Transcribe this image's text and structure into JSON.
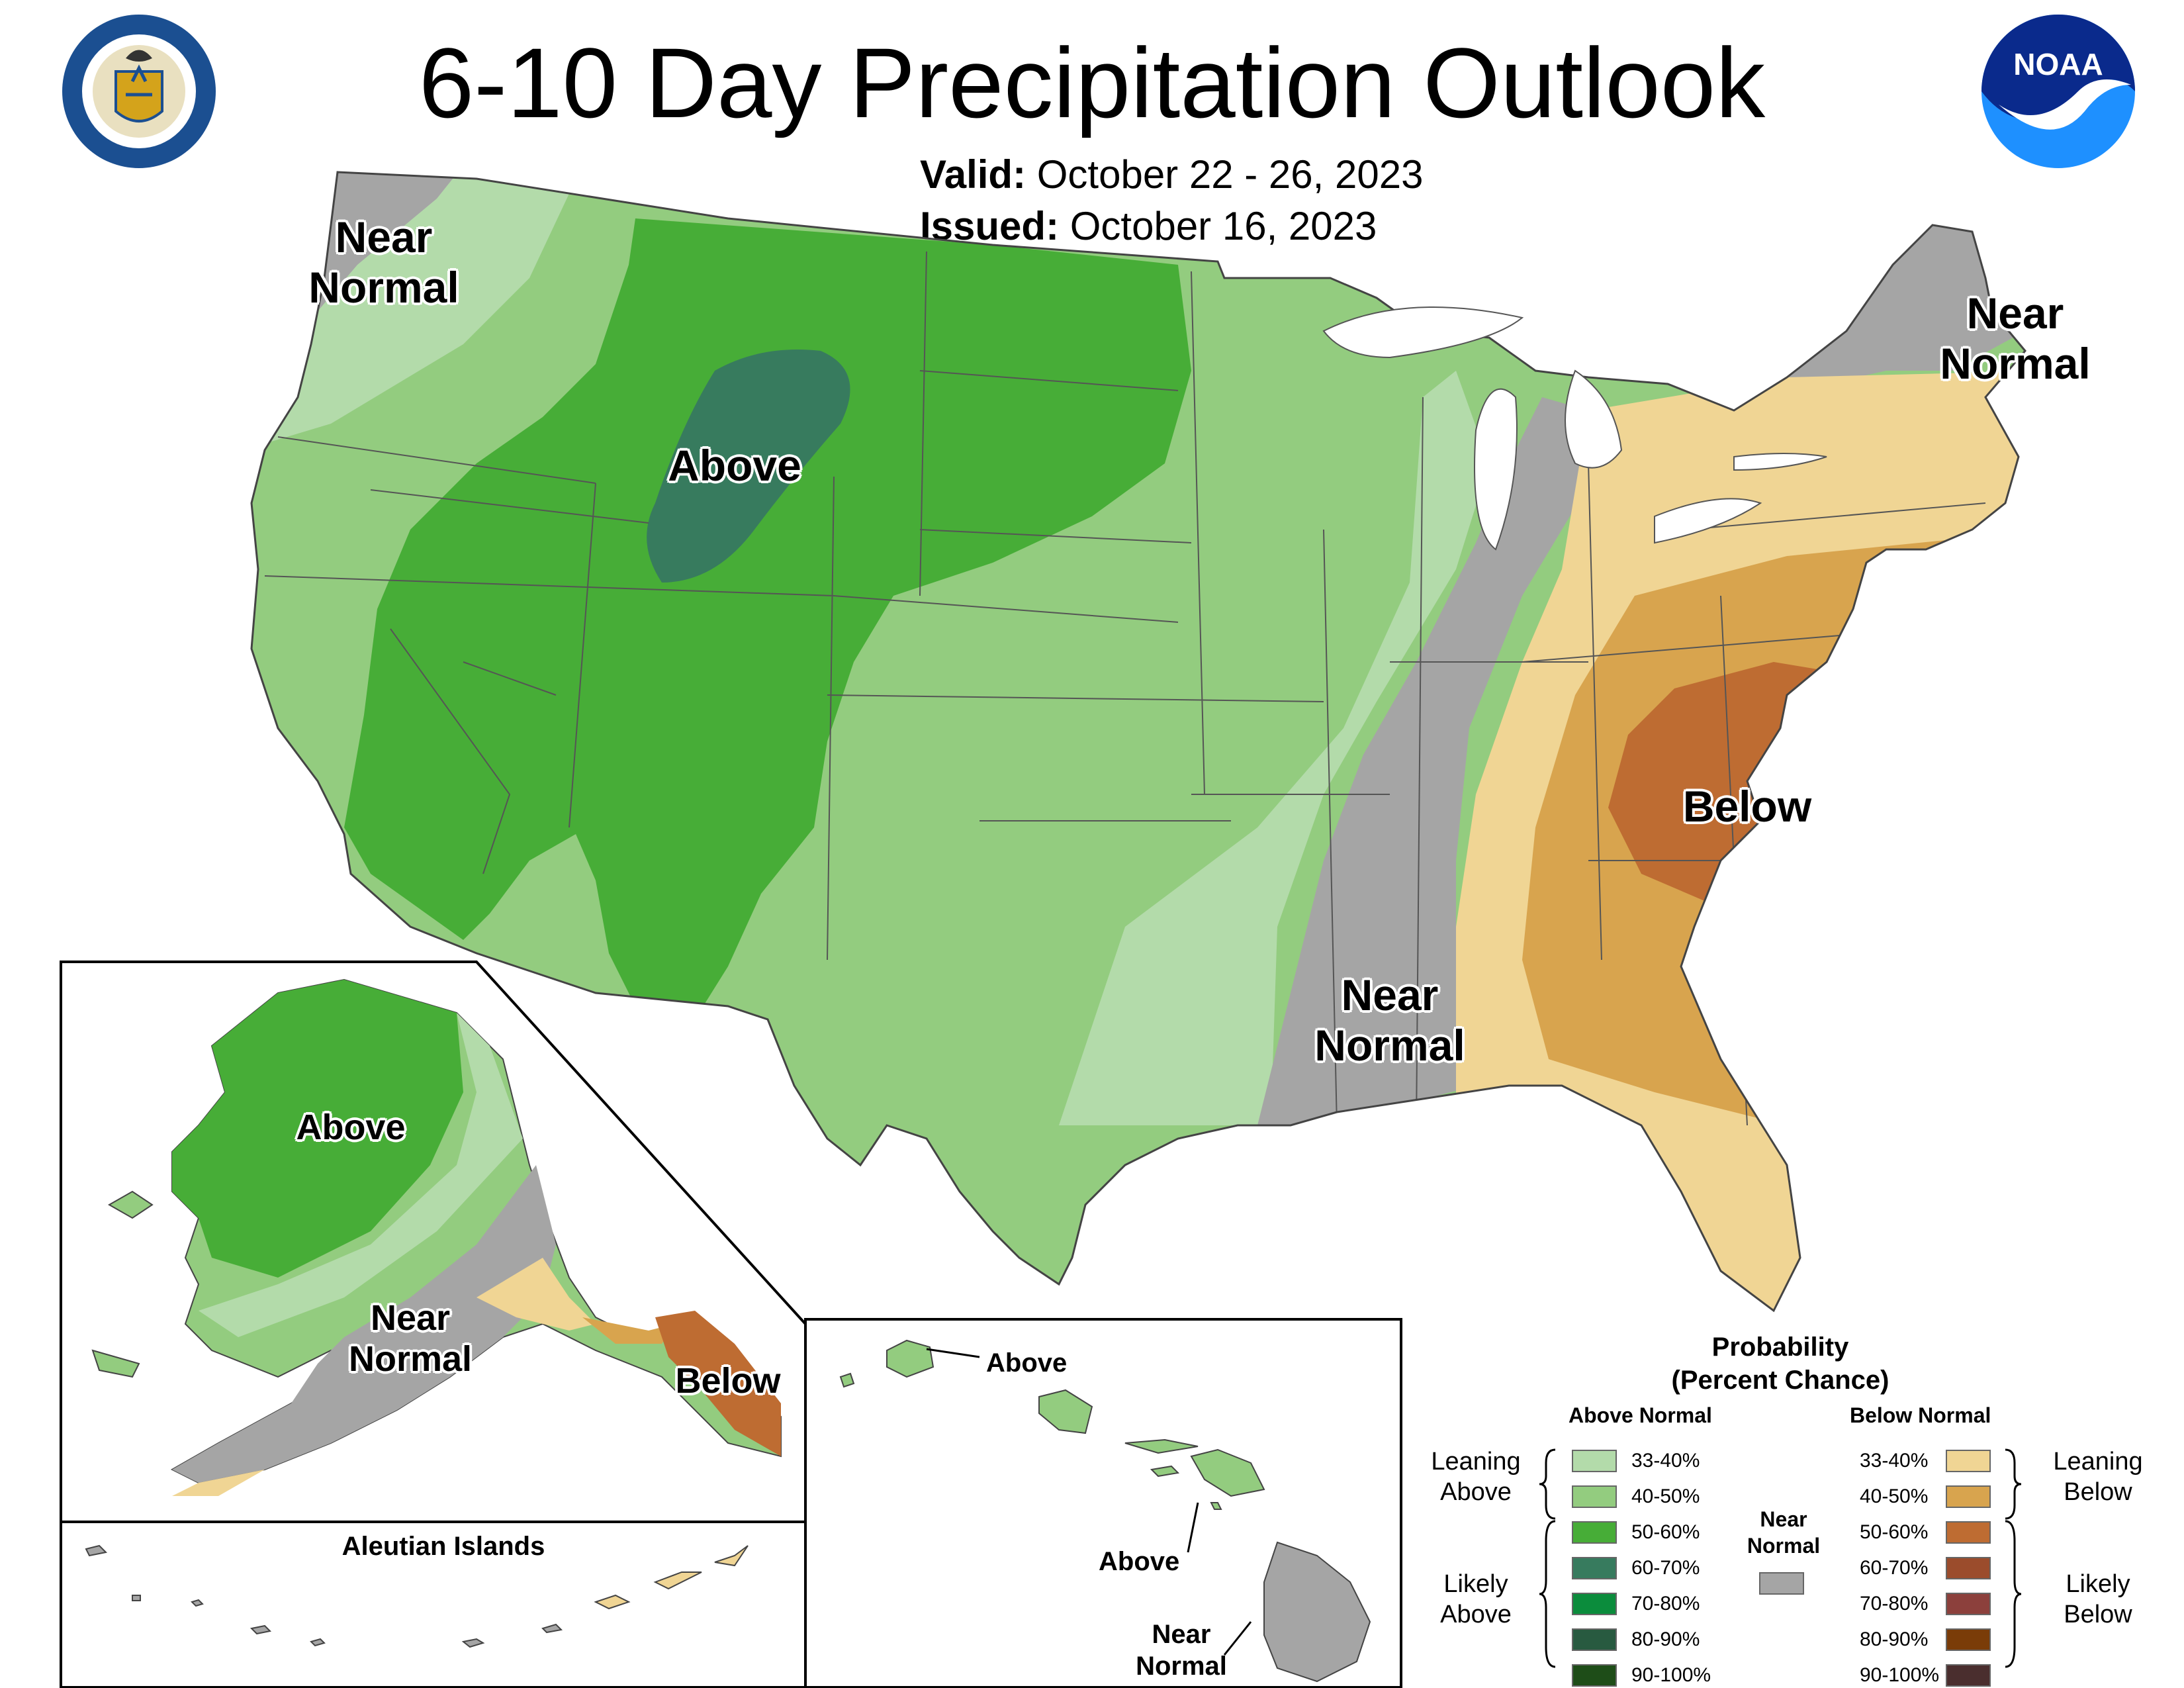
{
  "title": "6-10 Day Precipitation Outlook",
  "valid_label": "Valid:",
  "valid_value": "October 22 - 26, 2023",
  "issued_label": "Issued:",
  "issued_value": "October 16, 2023",
  "logos": {
    "left": "department-of-commerce-seal",
    "right": "noaa-logo"
  },
  "map_labels": {
    "nw": [
      "Near",
      "Normal"
    ],
    "ne": [
      "Near",
      "Normal"
    ],
    "above": "Above",
    "below": "Below",
    "south": [
      "Near",
      "Normal"
    ],
    "ak_above": "Above",
    "ak_near": [
      "Near",
      "Normal"
    ],
    "ak_below": "Below",
    "aleutian": "Aleutian Islands",
    "hi_above_1": "Above",
    "hi_above_2": "Above",
    "hi_near": [
      "Near",
      "Normal"
    ]
  },
  "legend": {
    "title_1": "Probability",
    "title_2": "(Percent Chance)",
    "above_head": "Above Normal",
    "below_head": "Below Normal",
    "near_1": "Near",
    "near_2": "Normal",
    "leaning_above": [
      "Leaning",
      "Above"
    ],
    "likely_above": [
      "Likely",
      "Above"
    ],
    "leaning_below": [
      "Leaning",
      "Below"
    ],
    "likely_below": [
      "Likely",
      "Below"
    ],
    "above": [
      {
        "range": "33-40%",
        "color": "#b3dbaa"
      },
      {
        "range": "40-50%",
        "color": "#93cc7f"
      },
      {
        "range": "50-60%",
        "color": "#47ad37"
      },
      {
        "range": "60-70%",
        "color": "#377b5e"
      },
      {
        "range": "70-80%",
        "color": "#0b8c3c"
      },
      {
        "range": "80-90%",
        "color": "#285a40"
      },
      {
        "range": "90-100%",
        "color": "#1e4d18"
      }
    ],
    "below": [
      {
        "range": "33-40%",
        "color": "#f0d594"
      },
      {
        "range": "40-50%",
        "color": "#d8a44e"
      },
      {
        "range": "50-60%",
        "color": "#be6c32"
      },
      {
        "range": "60-70%",
        "color": "#9b4c2c"
      },
      {
        "range": "70-80%",
        "color": "#8c403c"
      },
      {
        "range": "80-90%",
        "color": "#7a3c08"
      },
      {
        "range": "90-100%",
        "color": "#4a2e2e"
      }
    ],
    "near_color": "#a5a5a5"
  }
}
